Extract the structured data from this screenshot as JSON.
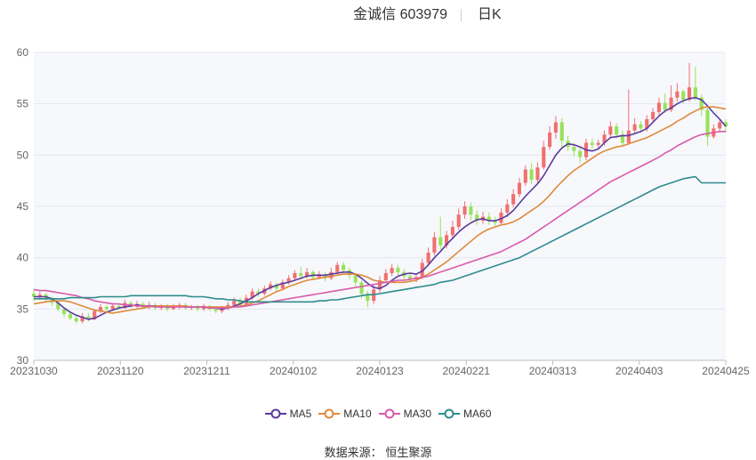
{
  "header": {
    "name_code": "金诚信 603979",
    "period": "日K"
  },
  "legend": [
    {
      "label": "MA5",
      "color": "#5b3a9e"
    },
    {
      "label": "MA10",
      "color": "#e08a3a"
    },
    {
      "label": "MA30",
      "color": "#d95bab"
    },
    {
      "label": "MA60",
      "color": "#2e8c8c"
    }
  ],
  "source": {
    "label": "数据来源：",
    "value": "恒生聚源"
  },
  "colors": {
    "up": "#f07070",
    "down": "#96e35a",
    "grid": "#e3e7f0",
    "plot_bg": "#f7f8fc"
  },
  "chart_data": {
    "type": "candlestick",
    "title": "金诚信 603979",
    "period": "日K",
    "ylim": [
      30,
      60
    ],
    "yticks": [
      30,
      35,
      40,
      45,
      50,
      55,
      60
    ],
    "xticks": [
      "20231030",
      "20231120",
      "20231211",
      "20240102",
      "20240123",
      "20240221",
      "20240313",
      "20240403",
      "20240425"
    ],
    "candles": [
      [
        36.5,
        36.2,
        36.9,
        35.8
      ],
      [
        36.2,
        36.4,
        36.7,
        35.9
      ],
      [
        36.4,
        36.0,
        36.6,
        35.7
      ],
      [
        36.0,
        35.6,
        36.2,
        35.3
      ],
      [
        35.6,
        35.0,
        35.8,
        34.8
      ],
      [
        35.0,
        34.5,
        35.2,
        34.2
      ],
      [
        34.5,
        34.1,
        34.8,
        33.9
      ],
      [
        34.1,
        33.8,
        34.4,
        33.6
      ],
      [
        33.8,
        34.3,
        34.6,
        33.6
      ],
      [
        34.3,
        34.0,
        34.6,
        33.8
      ],
      [
        34.0,
        34.8,
        35.0,
        33.9
      ],
      [
        34.8,
        35.2,
        35.5,
        34.6
      ],
      [
        35.2,
        35.0,
        35.4,
        34.8
      ],
      [
        35.0,
        35.3,
        35.6,
        34.8
      ],
      [
        35.3,
        35.1,
        35.5,
        34.9
      ],
      [
        35.1,
        35.6,
        35.9,
        35.0
      ],
      [
        35.6,
        35.3,
        35.8,
        35.1
      ],
      [
        35.3,
        35.5,
        35.8,
        35.1
      ],
      [
        35.5,
        35.2,
        35.7,
        35.0
      ],
      [
        35.2,
        35.4,
        35.7,
        35.0
      ],
      [
        35.4,
        35.1,
        35.6,
        34.9
      ],
      [
        35.1,
        35.3,
        35.5,
        34.9
      ],
      [
        35.3,
        35.0,
        35.5,
        34.8
      ],
      [
        35.0,
        35.2,
        35.5,
        34.9
      ],
      [
        35.2,
        35.4,
        35.6,
        35.0
      ],
      [
        35.4,
        35.1,
        35.6,
        34.9
      ],
      [
        35.1,
        35.2,
        35.4,
        34.9
      ],
      [
        35.2,
        35.0,
        35.4,
        34.8
      ],
      [
        35.0,
        35.3,
        35.5,
        34.8
      ],
      [
        35.3,
        35.0,
        35.4,
        34.8
      ],
      [
        35.0,
        34.8,
        35.2,
        34.6
      ],
      [
        34.8,
        35.1,
        35.3,
        34.6
      ],
      [
        35.1,
        35.4,
        35.7,
        34.9
      ],
      [
        35.4,
        35.8,
        36.1,
        35.2
      ],
      [
        35.8,
        35.5,
        36.1,
        35.3
      ],
      [
        35.5,
        36.1,
        36.4,
        35.4
      ],
      [
        36.1,
        36.7,
        37.0,
        35.9
      ],
      [
        36.7,
        36.5,
        37.0,
        36.2
      ],
      [
        36.5,
        37.0,
        37.3,
        36.3
      ],
      [
        37.0,
        37.4,
        37.7,
        36.8
      ],
      [
        37.4,
        37.0,
        37.6,
        36.7
      ],
      [
        37.0,
        37.6,
        37.9,
        36.9
      ],
      [
        37.6,
        38.0,
        38.3,
        37.4
      ],
      [
        38.0,
        38.5,
        38.8,
        37.8
      ],
      [
        38.5,
        38.2,
        39.1,
        37.9
      ],
      [
        38.2,
        38.6,
        39.0,
        38.0
      ],
      [
        38.6,
        38.1,
        38.8,
        37.8
      ],
      [
        38.1,
        38.4,
        38.7,
        37.9
      ],
      [
        38.4,
        38.0,
        38.6,
        37.7
      ],
      [
        38.0,
        38.6,
        39.0,
        37.8
      ],
      [
        38.6,
        39.3,
        39.6,
        38.4
      ],
      [
        39.3,
        38.8,
        39.6,
        38.5
      ],
      [
        38.8,
        38.3,
        39.0,
        37.9
      ],
      [
        38.3,
        37.6,
        38.5,
        37.2
      ],
      [
        37.6,
        36.5,
        37.8,
        36.0
      ],
      [
        36.5,
        35.8,
        36.8,
        35.2
      ],
      [
        35.8,
        36.9,
        37.3,
        35.5
      ],
      [
        36.9,
        37.8,
        38.2,
        36.6
      ],
      [
        37.8,
        38.5,
        38.9,
        37.5
      ],
      [
        38.5,
        39.0,
        39.4,
        38.2
      ],
      [
        39.0,
        38.6,
        39.3,
        38.3
      ],
      [
        38.6,
        38.2,
        38.9,
        37.9
      ],
      [
        38.2,
        37.9,
        38.5,
        37.6
      ],
      [
        37.9,
        38.1,
        38.4,
        37.6
      ],
      [
        38.1,
        39.5,
        39.9,
        37.9
      ],
      [
        39.5,
        40.5,
        41.0,
        39.2
      ],
      [
        40.5,
        42.0,
        42.5,
        40.2
      ],
      [
        42.0,
        41.2,
        44.0,
        40.8
      ],
      [
        41.2,
        42.2,
        42.6,
        40.9
      ],
      [
        42.2,
        43.0,
        43.6,
        41.8
      ],
      [
        43.0,
        44.2,
        44.8,
        42.7
      ],
      [
        44.2,
        45.0,
        45.5,
        43.8
      ],
      [
        45.0,
        44.2,
        45.4,
        43.6
      ],
      [
        44.2,
        43.6,
        44.6,
        43.2
      ],
      [
        43.6,
        44.0,
        44.5,
        43.3
      ],
      [
        44.0,
        43.6,
        44.4,
        43.2
      ],
      [
        43.6,
        43.4,
        44.0,
        43.1
      ],
      [
        43.4,
        44.4,
        44.8,
        43.2
      ],
      [
        44.4,
        45.2,
        45.7,
        44.0
      ],
      [
        45.2,
        46.2,
        46.7,
        44.9
      ],
      [
        46.2,
        47.3,
        47.8,
        45.9
      ],
      [
        47.3,
        48.6,
        49.0,
        47.0
      ],
      [
        48.6,
        47.6,
        49.2,
        47.2
      ],
      [
        47.6,
        48.8,
        49.3,
        47.3
      ],
      [
        48.8,
        50.8,
        51.4,
        48.6
      ],
      [
        50.8,
        52.2,
        52.8,
        50.5
      ],
      [
        52.2,
        53.2,
        53.8,
        51.6
      ],
      [
        53.2,
        51.4,
        53.6,
        50.8
      ],
      [
        51.4,
        50.8,
        51.9,
        50.4
      ],
      [
        50.8,
        50.4,
        51.2,
        49.9
      ],
      [
        50.4,
        49.8,
        50.8,
        49.2
      ],
      [
        49.8,
        51.2,
        51.6,
        49.5
      ],
      [
        51.2,
        51.0,
        51.6,
        50.6
      ],
      [
        51.0,
        51.2,
        51.5,
        50.7
      ],
      [
        51.2,
        52.0,
        52.4,
        50.9
      ],
      [
        52.0,
        52.8,
        53.3,
        51.7
      ],
      [
        52.8,
        52.0,
        53.1,
        51.6
      ],
      [
        52.0,
        51.2,
        52.4,
        50.9
      ],
      [
        51.2,
        52.4,
        56.4,
        51.0
      ],
      [
        52.4,
        53.0,
        53.6,
        52.1
      ],
      [
        53.0,
        52.6,
        53.3,
        52.2
      ],
      [
        52.6,
        53.5,
        53.9,
        52.3
      ],
      [
        53.5,
        54.2,
        54.6,
        53.2
      ],
      [
        54.2,
        55.1,
        55.6,
        53.9
      ],
      [
        55.1,
        54.4,
        56.0,
        54.1
      ],
      [
        54.4,
        55.6,
        56.8,
        54.2
      ],
      [
        55.6,
        56.2,
        57.0,
        55.2
      ],
      [
        56.2,
        55.4,
        56.4,
        55.0
      ],
      [
        55.4,
        56.6,
        59.0,
        55.2
      ],
      [
        56.6,
        55.6,
        58.6,
        55.3
      ],
      [
        55.6,
        54.4,
        55.9,
        53.8
      ],
      [
        54.4,
        51.8,
        54.7,
        50.9
      ],
      [
        51.8,
        52.6,
        53.0,
        51.6
      ],
      [
        52.6,
        53.2,
        53.6,
        52.2
      ],
      [
        53.2,
        52.8,
        53.5,
        52.2
      ]
    ],
    "series": [
      {
        "name": "MA5",
        "color": "#5b3a9e",
        "values": [
          36.2,
          36.2,
          36.2,
          36.0,
          35.6,
          35.1,
          34.7,
          34.4,
          34.2,
          34.0,
          34.1,
          34.4,
          34.7,
          34.9,
          35.1,
          35.2,
          35.3,
          35.4,
          35.3,
          35.3,
          35.3,
          35.3,
          35.2,
          35.2,
          35.3,
          35.2,
          35.2,
          35.2,
          35.2,
          35.1,
          35.1,
          35.0,
          35.1,
          35.3,
          35.5,
          35.8,
          36.1,
          36.5,
          36.8,
          37.1,
          37.3,
          37.5,
          37.6,
          37.8,
          38.0,
          38.2,
          38.3,
          38.3,
          38.3,
          38.4,
          38.5,
          38.6,
          38.6,
          38.4,
          38.0,
          37.5,
          37.1,
          37.0,
          37.3,
          37.8,
          38.2,
          38.4,
          38.5,
          38.4,
          38.7,
          39.3,
          40.0,
          40.6,
          41.3,
          41.9,
          42.5,
          43.0,
          43.4,
          43.7,
          43.8,
          43.6,
          43.6,
          43.8,
          44.1,
          44.6,
          45.3,
          46.0,
          46.6,
          47.2,
          48.0,
          49.0,
          50.0,
          50.7,
          51.1,
          51.0,
          50.8,
          50.5,
          50.4,
          50.6,
          51.2,
          51.7,
          51.8,
          51.9,
          51.9,
          52.1,
          52.3,
          52.6,
          53.2,
          53.8,
          54.3,
          54.6,
          55.0,
          55.3,
          55.5,
          55.6,
          55.4,
          54.8,
          54.1,
          53.5,
          52.8
        ]
      },
      {
        "name": "MA10",
        "color": "#e08a3a",
        "values": [
          35.5,
          35.6,
          35.7,
          35.8,
          35.8,
          35.8,
          35.7,
          35.5,
          35.3,
          35.1,
          34.9,
          34.8,
          34.7,
          34.6,
          34.7,
          34.8,
          34.9,
          35.0,
          35.1,
          35.2,
          35.3,
          35.3,
          35.3,
          35.3,
          35.3,
          35.3,
          35.2,
          35.2,
          35.2,
          35.2,
          35.2,
          35.2,
          35.2,
          35.2,
          35.3,
          35.4,
          35.6,
          35.8,
          36.1,
          36.4,
          36.7,
          36.9,
          37.2,
          37.4,
          37.6,
          37.8,
          37.9,
          38.0,
          38.1,
          38.2,
          38.3,
          38.4,
          38.4,
          38.4,
          38.3,
          38.1,
          37.8,
          37.7,
          37.6,
          37.6,
          37.6,
          37.6,
          37.7,
          37.8,
          38.1,
          38.4,
          38.8,
          39.2,
          39.6,
          40.1,
          40.6,
          41.1,
          41.6,
          42.1,
          42.5,
          42.8,
          43.0,
          43.2,
          43.3,
          43.5,
          43.8,
          44.2,
          44.6,
          45.0,
          45.5,
          46.1,
          46.8,
          47.4,
          48.0,
          48.5,
          48.9,
          49.3,
          49.7,
          50.1,
          50.4,
          50.6,
          50.8,
          50.9,
          51.1,
          51.3,
          51.5,
          51.7,
          52.0,
          52.3,
          52.6,
          52.9,
          53.3,
          53.6,
          54.0,
          54.3,
          54.6,
          54.7,
          54.7,
          54.6,
          54.5
        ]
      },
      {
        "name": "MA30",
        "color": "#d95bab",
        "values": [
          36.9,
          36.8,
          36.8,
          36.7,
          36.6,
          36.5,
          36.4,
          36.3,
          36.1,
          36.0,
          35.8,
          35.7,
          35.6,
          35.5,
          35.5,
          35.4,
          35.4,
          35.3,
          35.3,
          35.3,
          35.2,
          35.2,
          35.2,
          35.2,
          35.2,
          35.2,
          35.2,
          35.2,
          35.2,
          35.1,
          35.1,
          35.1,
          35.1,
          35.2,
          35.2,
          35.3,
          35.4,
          35.5,
          35.6,
          35.7,
          35.8,
          35.9,
          36.0,
          36.1,
          36.2,
          36.3,
          36.4,
          36.5,
          36.6,
          36.7,
          36.8,
          36.9,
          37.0,
          37.1,
          37.2,
          37.3,
          37.4,
          37.5,
          37.6,
          37.7,
          37.8,
          37.8,
          37.9,
          38.0,
          38.1,
          38.2,
          38.4,
          38.6,
          38.8,
          39.0,
          39.2,
          39.4,
          39.6,
          39.8,
          40.0,
          40.2,
          40.4,
          40.6,
          40.9,
          41.2,
          41.5,
          41.8,
          42.2,
          42.6,
          43.0,
          43.4,
          43.8,
          44.2,
          44.6,
          45.0,
          45.4,
          45.8,
          46.2,
          46.6,
          47.0,
          47.4,
          47.7,
          48.0,
          48.3,
          48.6,
          48.9,
          49.2,
          49.5,
          49.8,
          50.2,
          50.5,
          50.9,
          51.2,
          51.5,
          51.8,
          52.0,
          52.1,
          52.2,
          52.3,
          52.3
        ]
      },
      {
        "name": "MA60",
        "color": "#2e8c8c",
        "values": [
          36.0,
          36.0,
          36.0,
          36.0,
          36.0,
          36.0,
          36.1,
          36.1,
          36.1,
          36.1,
          36.1,
          36.2,
          36.2,
          36.2,
          36.2,
          36.2,
          36.3,
          36.3,
          36.3,
          36.3,
          36.3,
          36.3,
          36.3,
          36.3,
          36.3,
          36.3,
          36.2,
          36.2,
          36.2,
          36.1,
          36.0,
          36.0,
          35.9,
          35.9,
          35.8,
          35.7,
          35.7,
          35.7,
          35.7,
          35.7,
          35.7,
          35.7,
          35.7,
          35.7,
          35.7,
          35.7,
          35.7,
          35.8,
          35.8,
          35.9,
          35.9,
          36.0,
          36.1,
          36.2,
          36.3,
          36.4,
          36.4,
          36.5,
          36.6,
          36.7,
          36.8,
          36.9,
          37.0,
          37.1,
          37.2,
          37.3,
          37.4,
          37.6,
          37.7,
          37.8,
          38.0,
          38.2,
          38.4,
          38.6,
          38.8,
          39.0,
          39.2,
          39.4,
          39.6,
          39.8,
          40.0,
          40.3,
          40.6,
          40.9,
          41.2,
          41.5,
          41.8,
          42.1,
          42.4,
          42.7,
          43.0,
          43.3,
          43.6,
          43.9,
          44.2,
          44.5,
          44.8,
          45.1,
          45.4,
          45.7,
          46.0,
          46.3,
          46.6,
          46.9,
          47.1,
          47.3,
          47.5,
          47.7,
          47.8,
          47.9,
          47.3,
          47.3,
          47.3,
          47.3,
          47.3
        ]
      }
    ]
  }
}
